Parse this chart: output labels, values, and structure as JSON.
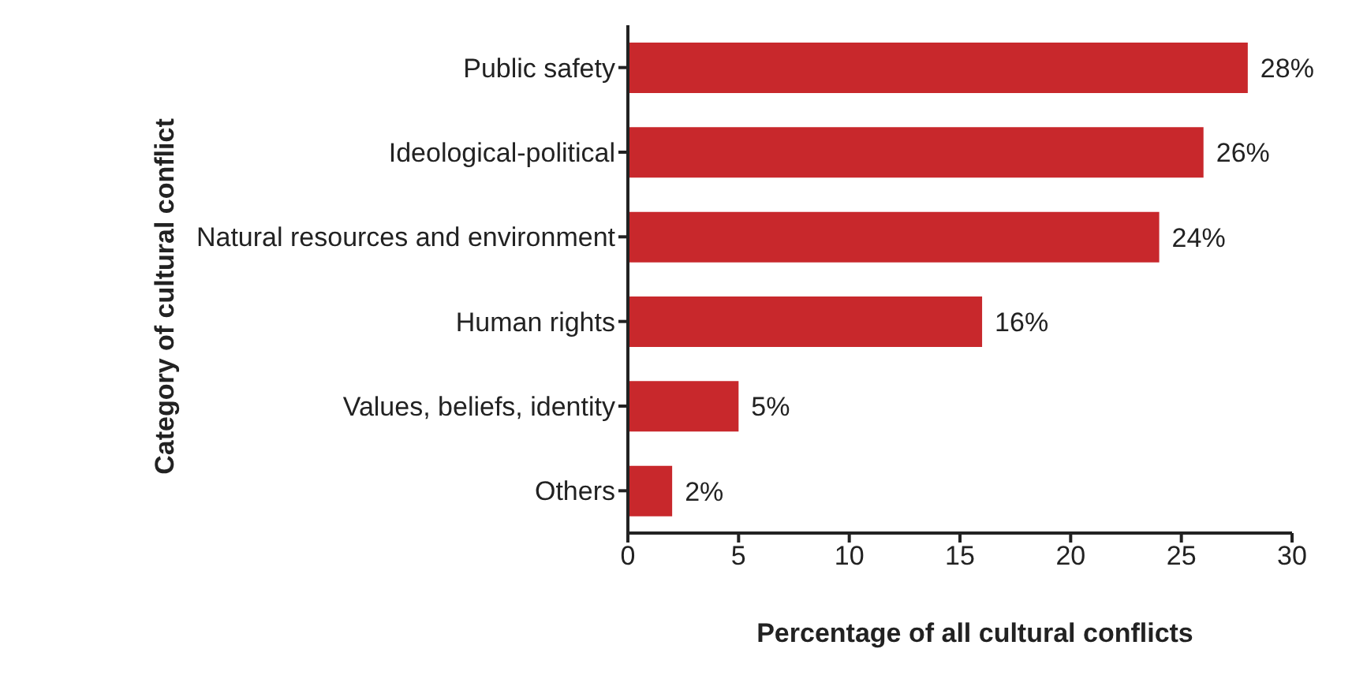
{
  "chart_data": {
    "type": "bar",
    "orientation": "horizontal",
    "xlabel": "Percentage of all cultural conflicts",
    "ylabel": "Category of cultural conflict",
    "categories": [
      "Public safety",
      "Ideological-political",
      "Natural resources and environment",
      "Human rights",
      "Values, beliefs, identity",
      "Others"
    ],
    "values": [
      28,
      26,
      24,
      16,
      5,
      2
    ],
    "value_labels": [
      "28%",
      "26%",
      "24%",
      "16%",
      "5%",
      "2%"
    ],
    "color": "#c8282c",
    "xlim": [
      0,
      30
    ],
    "xticks": [
      0,
      5,
      10,
      15,
      20,
      25,
      30
    ],
    "grid": false,
    "legend": false
  }
}
